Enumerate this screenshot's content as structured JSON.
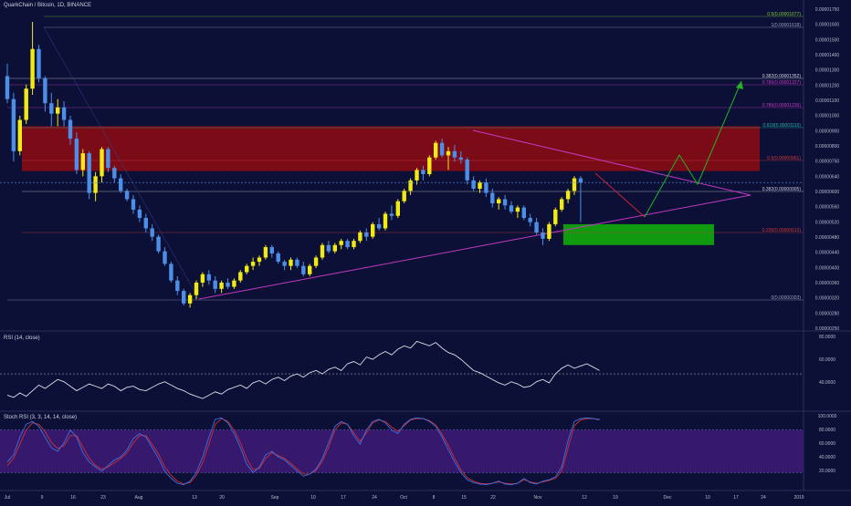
{
  "header": {
    "title": "QuarkChain / Bitcoin, 1D, BINANCE",
    "rsi_title": "RSI (14, close)",
    "stoch_title": "Stoch RSI (3, 3, 14, 14, close)"
  },
  "colors": {
    "background": "#0c0f36",
    "candle_up": "#f2ea14",
    "candle_down": "#4d8fe6",
    "red_zone": "#8c0b14",
    "green_zone": "#0f9a10",
    "triangle": "#c23ac0",
    "forecast_up": "#22b423",
    "forecast_down": "#cc2233",
    "rsi_line": "#dddfe8",
    "stoch_k": "#3c70e0",
    "stoch_d": "#d23030",
    "stoch_band": "#3b1b73"
  },
  "chart_data": [
    {
      "type": "candlestick",
      "title": "QuarkChain / Bitcoin, 1D, BINANCE",
      "y_axis_labels": [
        "0.00001750",
        "0.00001600",
        "0.00001500",
        "0.00001400",
        "0.00001300",
        "0.00001200",
        "0.00001100",
        "0.00001000",
        "0.00000900",
        "0.00000800",
        "0.00000750",
        "0.00000640",
        "0.00000600",
        "0.00000560",
        "0.00000520",
        "0.00000480",
        "0.00000440",
        "0.00000400",
        "0.00000360",
        "0.00000320",
        "0.00000280",
        "0.00000250"
      ],
      "x_axis_labels": [
        "Jul",
        "9",
        "16",
        "23",
        "Aug",
        "13",
        "20",
        "Sep",
        "10",
        "17",
        "24",
        "Oct",
        "8",
        "15",
        "22",
        "Nov",
        "12",
        "19",
        "Dec",
        "10",
        "17",
        "24",
        "2019"
      ],
      "fibonacci_levels": [
        {
          "label": "0.5(0.00001677)",
          "color": "#7ecb3a"
        },
        {
          "label": "1(0.00001618)",
          "color": "#9aa0b8"
        },
        {
          "label": "0.382(0.00001352)",
          "color": "#d2d4de"
        },
        {
          "label": "0.786(0.00001327)",
          "color": "#c23ac0"
        },
        {
          "label": "0.786(0.00001236)",
          "color": "#c23ac0"
        },
        {
          "label": "0.618(0.00001115)",
          "color": "#26b9a4"
        },
        {
          "label": "0.5(0.00000961)",
          "color": "#cc3a3a"
        },
        {
          "label": "0.382(0.00000905)",
          "color": "#c9cbd8"
        },
        {
          "label": "0.236(0.00000613)",
          "color": "#cc3a3a"
        },
        {
          "label": "0(0.00000303)",
          "color": "#9aa0b8"
        }
      ],
      "y_range": [
        2.2e-06,
        1.75e-05
      ],
      "candles": [
        [
          1.42e-05,
          1.48e-05,
          1.29e-05,
          1.31e-05
        ],
        [
          1.31e-05,
          1.34e-05,
          1.01e-05,
          1.06e-05
        ],
        [
          1.06e-05,
          1.23e-05,
          1.04e-05,
          1.21e-05
        ],
        [
          1.21e-05,
          1.38e-05,
          1.19e-05,
          1.36e-05
        ],
        [
          1.36e-05,
          1.68e-05,
          1.33e-05,
          1.55e-05
        ],
        [
          1.55e-05,
          1.57e-05,
          1.39e-05,
          1.41e-05
        ],
        [
          1.41e-05,
          1.42e-05,
          1.25e-05,
          1.29e-05
        ],
        [
          1.29e-05,
          1.34e-05,
          1.18e-05,
          1.24e-05
        ],
        [
          1.24e-05,
          1.31e-05,
          1.18e-05,
          1.27e-05
        ],
        [
          1.27e-05,
          1.3e-05,
          1.18e-05,
          1.21e-05
        ],
        [
          1.21e-05,
          1.23e-05,
          1.09e-05,
          1.12e-05
        ],
        [
          1.12e-05,
          1.15e-05,
          9.5e-06,
          9.7e-06
        ],
        [
          9.7e-06,
          1.07e-05,
          9.4e-06,
          1.05e-05
        ],
        [
          1.05e-05,
          1.06e-05,
          8.3e-06,
          8.6e-06
        ],
        [
          8.6e-06,
          9.6e-06,
          8.2e-06,
          9.4e-06
        ],
        [
          9.4e-06,
          1.08e-05,
          9.1e-06,
          1.07e-05
        ],
        [
          1.07e-05,
          1.08e-05,
          9.6e-06,
          9.8e-06
        ],
        [
          9.8e-06,
          9.9e-06,
          9.1e-06,
          9.3e-06
        ],
        [
          9.3e-06,
          9.5e-06,
          8.6e-06,
          8.7e-06
        ],
        [
          8.7e-06,
          8.8e-06,
          8.2e-06,
          8.3e-06
        ],
        [
          8.3e-06,
          8.5e-06,
          7.6e-06,
          7.8e-06
        ],
        [
          7.8e-06,
          8e-06,
          7.2e-06,
          7.4e-06
        ],
        [
          7.4e-06,
          7.6e-06,
          6.7e-06,
          6.9e-06
        ],
        [
          6.9e-06,
          7.1e-06,
          6.3e-06,
          6.5e-06
        ],
        [
          6.5e-06,
          6.6e-06,
          5.7e-06,
          5.8e-06
        ],
        [
          5.8e-06,
          6e-06,
          5.1e-06,
          5.2e-06
        ],
        [
          5.2e-06,
          5.3e-06,
          4.3e-06,
          4.4e-06
        ],
        [
          4.4e-06,
          4.6e-06,
          3.7e-06,
          3.9e-06
        ],
        [
          3.9e-06,
          4e-06,
          3.2e-06,
          3.3e-06
        ],
        [
          3.3e-06,
          3.8e-06,
          3.1e-06,
          3.7e-06
        ],
        [
          3.7e-06,
          4.4e-06,
          3.5e-06,
          4.3e-06
        ],
        [
          4.3e-06,
          4.8e-06,
          4.1e-06,
          4.7e-06
        ],
        [
          4.7e-06,
          4.9e-06,
          4.2e-06,
          4.4e-06
        ],
        [
          4.4e-06,
          4.6e-06,
          3.8e-06,
          4e-06
        ],
        [
          4e-06,
          4.4e-06,
          3.8e-06,
          4.3e-06
        ],
        [
          4.3e-06,
          4.5e-06,
          4e-06,
          4.1e-06
        ],
        [
          4.1e-06,
          4.5e-06,
          4e-06,
          4.4e-06
        ],
        [
          4.4e-06,
          4.9e-06,
          4.3e-06,
          4.8e-06
        ],
        [
          4.8e-06,
          5.2e-06,
          4.7e-06,
          5.1e-06
        ],
        [
          5.1e-06,
          5.5e-06,
          4.9e-06,
          5.3e-06
        ],
        [
          5.3e-06,
          5.6e-06,
          5.1e-06,
          5.5e-06
        ],
        [
          5.5e-06,
          6.1e-06,
          5.4e-06,
          6e-06
        ],
        [
          6e-06,
          6.1e-06,
          5.5e-06,
          5.7e-06
        ],
        [
          5.7e-06,
          5.8e-06,
          5.2e-06,
          5.3e-06
        ],
        [
          5.3e-06,
          5.4e-06,
          4.9e-06,
          5.1e-06
        ],
        [
          5.1e-06,
          5.5e-06,
          4.9e-06,
          5.4e-06
        ],
        [
          5.4e-06,
          5.5e-06,
          5e-06,
          5.1e-06
        ],
        [
          5.1e-06,
          5.3e-06,
          4.6e-06,
          4.7e-06
        ],
        [
          4.7e-06,
          5.2e-06,
          4.6e-06,
          5.1e-06
        ],
        [
          5.1e-06,
          5.6e-06,
          5e-06,
          5.5e-06
        ],
        [
          5.5e-06,
          6.2e-06,
          5.4e-06,
          6.1e-06
        ],
        [
          6.1e-06,
          6.3e-06,
          5.7e-06,
          5.8e-06
        ],
        [
          5.8e-06,
          6.2e-06,
          5.7e-06,
          6.1e-06
        ],
        [
          6.1e-06,
          6.4e-06,
          5.9e-06,
          6.3e-06
        ],
        [
          6.3e-06,
          6.4e-06,
          5.9e-06,
          6e-06
        ],
        [
          6e-06,
          6.4e-06,
          5.9e-06,
          6.3e-06
        ],
        [
          6.3e-06,
          6.8e-06,
          6.2e-06,
          6.7e-06
        ],
        [
          6.7e-06,
          6.9e-06,
          6.3e-06,
          6.5e-06
        ],
        [
          6.5e-06,
          7.2e-06,
          6.4e-06,
          7.1e-06
        ],
        [
          7.1e-06,
          7.4e-06,
          6.8e-06,
          6.9e-06
        ],
        [
          6.9e-06,
          7.7e-06,
          6.8e-06,
          7.6e-06
        ],
        [
          7.6e-06,
          8e-06,
          7.3e-06,
          7.5e-06
        ],
        [
          7.5e-06,
          8.3e-06,
          7.4e-06,
          8.2e-06
        ],
        [
          8.2e-06,
          8.8e-06,
          8.1e-06,
          8.7e-06
        ],
        [
          8.7e-06,
          9.3e-06,
          8.5e-06,
          9.2e-06
        ],
        [
          9.2e-06,
          9.8e-06,
          9e-06,
          9.7e-06
        ],
        [
          9.7e-06,
          9.9e-06,
          9.2e-06,
          9.5e-06
        ],
        [
          9.5e-06,
          1.04e-05,
          9.4e-06,
          1.03e-05
        ],
        [
          1.03e-05,
          1.11e-05,
          1.02e-05,
          1.1e-05
        ],
        [
          1.1e-05,
          1.12e-05,
          1.03e-05,
          1.04e-05
        ],
        [
          1.04e-05,
          1.08e-05,
          9.7e-06,
          1.06e-05
        ],
        [
          1.06e-05,
          1.09e-05,
          1.01e-05,
          1.03e-05
        ],
        [
          1.03e-05,
          1.06e-05,
          1e-05,
          1.02e-05
        ],
        [
          1.02e-05,
          1.03e-05,
          9e-06,
          9.2e-06
        ],
        [
          9.2e-06,
          9.4e-06,
          8.7e-06,
          8.8e-06
        ],
        [
          8.8e-06,
          9.2e-06,
          8.6e-06,
          9.1e-06
        ],
        [
          9.1e-06,
          9.3e-06,
          8.4e-06,
          8.6e-06
        ],
        [
          8.6e-06,
          8.8e-06,
          7.9e-06,
          8.1e-06
        ],
        [
          8.1e-06,
          8.4e-06,
          7.8e-06,
          8.3e-06
        ],
        [
          8.3e-06,
          8.5e-06,
          7.8e-06,
          8e-06
        ],
        [
          8e-06,
          8.2e-06,
          7.6e-06,
          7.7e-06
        ],
        [
          7.7e-06,
          8e-06,
          7.4e-06,
          7.9e-06
        ],
        [
          7.9e-06,
          8e-06,
          7.3e-06,
          7.4e-06
        ],
        [
          7.4e-06,
          7.6e-06,
          7e-06,
          7.2e-06
        ],
        [
          7.2e-06,
          7.4e-06,
          6.6e-06,
          6.7e-06
        ],
        [
          6.7e-06,
          6.9e-06,
          6.1e-06,
          6.4e-06
        ],
        [
          6.4e-06,
          7.2e-06,
          6.3e-06,
          7.1e-06
        ],
        [
          7.1e-06,
          7.9e-06,
          7e-06,
          7.8e-06
        ],
        [
          7.8e-06,
          8.4e-06,
          7.7e-06,
          8.3e-06
        ],
        [
          8.3e-06,
          8.8e-06,
          8.1e-06,
          8.7e-06
        ],
        [
          8.7e-06,
          9.4e-06,
          8.5e-06,
          9.3e-06
        ],
        [
          9.3e-06,
          9.4e-06,
          7.2e-06,
          9.1e-06
        ]
      ],
      "zones": [
        {
          "name": "resistance",
          "from": 9.65e-06,
          "to": 1.18e-05
        },
        {
          "name": "support",
          "from": 6.1e-06,
          "to": 7.1e-06
        }
      ]
    },
    {
      "type": "line",
      "title": "RSI (14, close)",
      "y_axis_labels": [
        "80.0000",
        "60.0000",
        "40.0000"
      ],
      "ylim": [
        25,
        90
      ],
      "reference_line": 55,
      "values": [
        36,
        34,
        38,
        35,
        40,
        45,
        42,
        46,
        50,
        48,
        44,
        40,
        43,
        46,
        44,
        42,
        46,
        44,
        40,
        43,
        44,
        41,
        40,
        43,
        46,
        48,
        45,
        42,
        40,
        37,
        35,
        33,
        36,
        39,
        37,
        41,
        43,
        45,
        42,
        47,
        49,
        46,
        50,
        52,
        49,
        53,
        55,
        52,
        56,
        58,
        55,
        59,
        61,
        58,
        64,
        66,
        63,
        70,
        68,
        72,
        75,
        72,
        77,
        80,
        78,
        84,
        82,
        80,
        83,
        78,
        74,
        72,
        68,
        63,
        58,
        56,
        53,
        50,
        47,
        45,
        48,
        46,
        43,
        44,
        48,
        50,
        47,
        55,
        60,
        63,
        60,
        62,
        64,
        61,
        58
      ]
    },
    {
      "type": "line",
      "title": "Stoch RSI (3, 3, 14, 14, close)",
      "y_axis_labels": [
        "100.0000",
        "80.0000",
        "60.0000",
        "40.0000",
        "20.0000"
      ],
      "ylim": [
        0,
        100
      ],
      "band": [
        20,
        80
      ],
      "series": [
        {
          "values": [
            35,
            45,
            70,
            88,
            92,
            85,
            70,
            55,
            50,
            62,
            80,
            70,
            48,
            35,
            28,
            22,
            30,
            38,
            42,
            52,
            68,
            75,
            70,
            55,
            40,
            22,
            12,
            5,
            3,
            8,
            20,
            42,
            70,
            95,
            97,
            90,
            75,
            55,
            32,
            20,
            28,
            45,
            50,
            42,
            38,
            30,
            22,
            15,
            18,
            25,
            40,
            62,
            85,
            92,
            88,
            72,
            60,
            80,
            92,
            95,
            90,
            80,
            75,
            88,
            95,
            97,
            96,
            92,
            85,
            70,
            52,
            35,
            20,
            10,
            6,
            4,
            3,
            5,
            8,
            4,
            3,
            5,
            12,
            6,
            4,
            8,
            10,
            14,
            28,
            65,
            92,
            96,
            97,
            96,
            94
          ]
        },
        {
          "values": [
            30,
            40,
            60,
            80,
            90,
            88,
            78,
            62,
            54,
            58,
            72,
            72,
            56,
            40,
            30,
            25,
            28,
            34,
            40,
            48,
            62,
            72,
            72,
            60,
            46,
            28,
            16,
            8,
            4,
            6,
            16,
            34,
            60,
            88,
            96,
            92,
            80,
            62,
            40,
            24,
            26,
            40,
            48,
            44,
            40,
            33,
            25,
            18,
            18,
            23,
            36,
            56,
            80,
            90,
            88,
            76,
            64,
            76,
            90,
            94,
            92,
            84,
            78,
            86,
            94,
            96,
            96,
            93,
            87,
            74,
            58,
            40,
            24,
            13,
            8,
            5,
            4,
            5,
            7,
            5,
            4,
            5,
            10,
            7,
            5,
            7,
            9,
            12,
            22,
            55,
            86,
            94,
            96,
            96,
            95
          ]
        }
      ]
    }
  ]
}
